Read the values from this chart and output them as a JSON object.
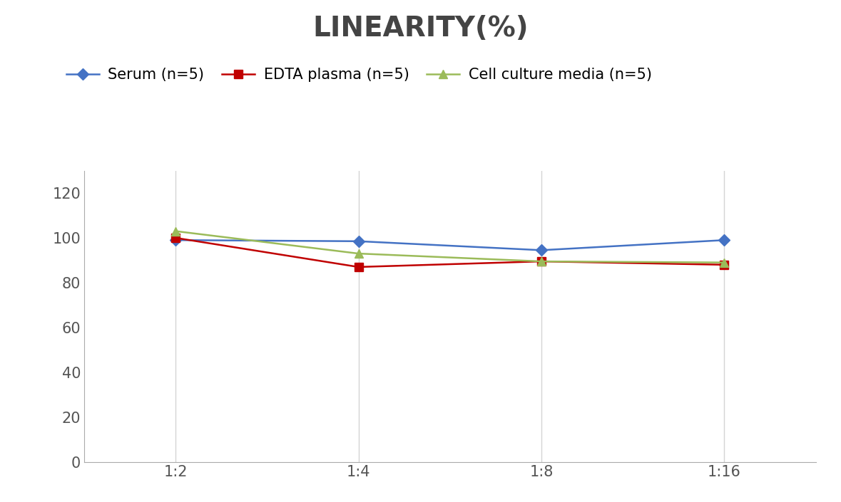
{
  "title": "LINEARITY(%)",
  "title_fontsize": 28,
  "title_fontweight": "bold",
  "title_color": "#444444",
  "x_labels": [
    "1:2",
    "1:4",
    "1:8",
    "1:16"
  ],
  "x_positions": [
    0,
    1,
    2,
    3
  ],
  "series": [
    {
      "label": "Serum (n=5)",
      "values": [
        99,
        98.5,
        94.5,
        99
      ],
      "color": "#4472C4",
      "marker": "D",
      "markersize": 8,
      "linewidth": 1.8
    },
    {
      "label": "EDTA plasma (n=5)",
      "values": [
        100,
        87,
        89.5,
        88
      ],
      "color": "#C00000",
      "marker": "s",
      "markersize": 8,
      "linewidth": 1.8
    },
    {
      "label": "Cell culture media (n=5)",
      "values": [
        103,
        93,
        89.5,
        89
      ],
      "color": "#9BBB59",
      "marker": "^",
      "markersize": 8,
      "linewidth": 1.8
    }
  ],
  "ylim": [
    0,
    130
  ],
  "yticks": [
    0,
    20,
    40,
    60,
    80,
    100,
    120
  ],
  "background_color": "#ffffff",
  "grid_color": "#d4d4d4",
  "legend_fontsize": 15,
  "tick_fontsize": 15,
  "figsize": [
    11.79,
    7.05
  ],
  "dpi": 100
}
